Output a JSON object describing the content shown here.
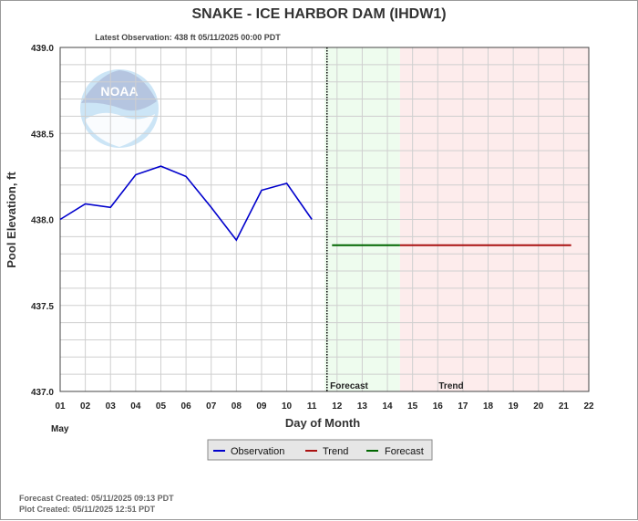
{
  "chart_data": {
    "type": "line",
    "title": "SNAKE - ICE HARBOR DAM  (IHDW1)",
    "subtitle": "Latest Observation: 438 ft 05/11/2025 00:00 PDT",
    "xlabel": "Day of Month",
    "ylabel": "Pool Elevation, ft",
    "month_label": "May",
    "x_ticks": [
      "01",
      "02",
      "03",
      "04",
      "05",
      "06",
      "07",
      "08",
      "09",
      "10",
      "11",
      "12",
      "13",
      "14",
      "15",
      "16",
      "17",
      "18",
      "19",
      "20",
      "21",
      "22"
    ],
    "y_ticks": [
      "437.0",
      "437.5",
      "438.0",
      "438.5",
      "439.0"
    ],
    "xlim": [
      1,
      22
    ],
    "ylim": [
      437.0,
      439.0
    ],
    "grid": true,
    "legend_position": "bottom-center",
    "forecast_region_label": "Forecast",
    "trend_region_label": "Trend",
    "forecast_region": [
      11.5,
      14.5
    ],
    "trend_region": [
      14.5,
      22
    ],
    "latest_observation_day": 11.6,
    "series": [
      {
        "name": "Observation",
        "color": "#0000cc",
        "points": [
          [
            1,
            438.0
          ],
          [
            2,
            438.09
          ],
          [
            3,
            438.07
          ],
          [
            4,
            438.26
          ],
          [
            5,
            438.31
          ],
          [
            6,
            438.25
          ],
          [
            7,
            438.07
          ],
          [
            8,
            437.88
          ],
          [
            9,
            438.17
          ],
          [
            10,
            438.21
          ],
          [
            11,
            438.0
          ]
        ]
      },
      {
        "name": "Trend",
        "color": "#aa1111",
        "points": [
          [
            14.5,
            437.85
          ],
          [
            21.3,
            437.85
          ]
        ]
      },
      {
        "name": "Forecast",
        "color": "#006600",
        "points": [
          [
            11.8,
            437.85
          ],
          [
            14.5,
            437.85
          ]
        ]
      }
    ]
  },
  "logo": {
    "text": "NOAA"
  },
  "footer": {
    "forecast_created": "Forecast Created: 05/11/2025 09:13 PDT",
    "plot_created": "Plot Created: 05/11/2025 12:51 PDT"
  },
  "colors": {
    "forecast_bg": "#eefcee",
    "trend_bg": "#fdecec",
    "grid": "#cfcfcf"
  }
}
